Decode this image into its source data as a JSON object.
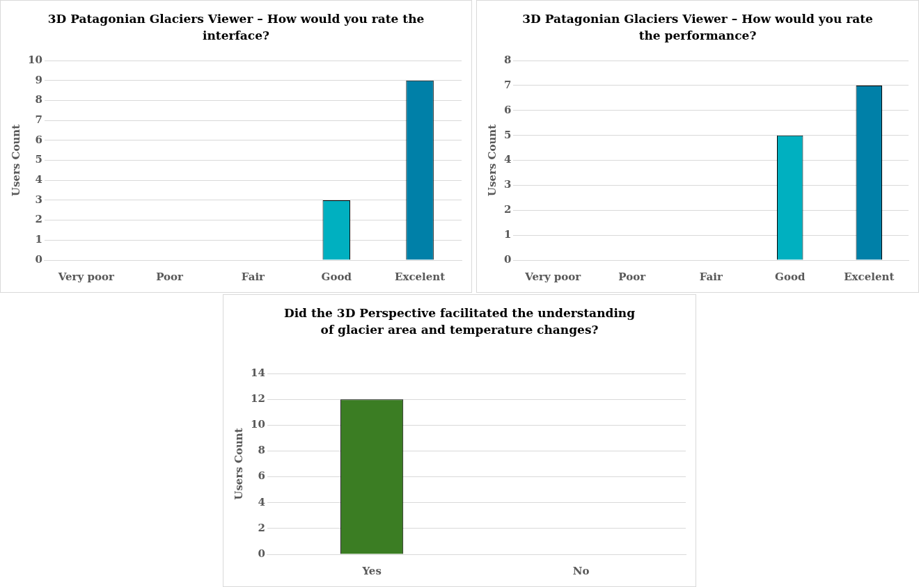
{
  "chart_data": [
    {
      "type": "bar",
      "title": "3D Patagonian Glaciers Viewer – How would you rate the interface?",
      "ylabel": "Users Count",
      "categories": [
        "Very poor",
        "Poor",
        "Fair",
        "Good",
        "Excelent"
      ],
      "values": [
        0,
        0,
        0,
        3,
        9
      ],
      "colors": [
        "#00b0c0",
        "#00b0c0",
        "#00b0c0",
        "#00b0c0",
        "#0080a8"
      ],
      "ylim": [
        0,
        10
      ],
      "yticks": [
        0,
        1,
        2,
        3,
        4,
        5,
        6,
        7,
        8,
        9,
        10
      ],
      "grid": "y",
      "legend": false
    },
    {
      "type": "bar",
      "title": "3D Patagonian Glaciers Viewer – How would you rate the performance?",
      "ylabel": "Users Count",
      "categories": [
        "Very poor",
        "Poor",
        "Fair",
        "Good",
        "Excelent"
      ],
      "values": [
        0,
        0,
        0,
        5,
        7
      ],
      "colors": [
        "#00b0c0",
        "#00b0c0",
        "#00b0c0",
        "#00b0c0",
        "#0080a8"
      ],
      "ylim": [
        0,
        8
      ],
      "yticks": [
        0,
        1,
        2,
        3,
        4,
        5,
        6,
        7,
        8
      ],
      "grid": "y",
      "legend": false
    },
    {
      "type": "bar",
      "title": "Did the 3D Perspective facilitated the understanding of glacier area and temperature changes?",
      "ylabel": "Users Count",
      "categories": [
        "Yes",
        "No"
      ],
      "values": [
        12,
        0
      ],
      "colors": [
        "#3b7d23",
        "#3b7d23"
      ],
      "ylim": [
        0,
        14
      ],
      "yticks": [
        0,
        2,
        4,
        6,
        8,
        10,
        12,
        14
      ],
      "grid": "y",
      "legend": false
    }
  ]
}
